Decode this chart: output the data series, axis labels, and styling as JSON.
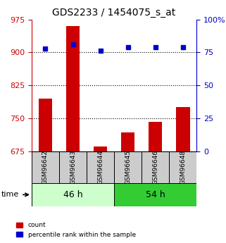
{
  "title": "GDS2233 / 1454075_s_at",
  "samples": [
    "GSM96642",
    "GSM96643",
    "GSM96644",
    "GSM96645",
    "GSM96646",
    "GSM96648"
  ],
  "bar_values": [
    795,
    960,
    685,
    718,
    742,
    775
  ],
  "percentile_values": [
    78,
    81,
    76,
    79,
    79,
    79
  ],
  "ylim_left": [
    675,
    975
  ],
  "ylim_right": [
    0,
    100
  ],
  "yticks_left": [
    675,
    750,
    825,
    900,
    975
  ],
  "yticks_right": [
    0,
    25,
    50,
    75,
    100
  ],
  "bar_color": "#cc0000",
  "percentile_color": "#0000cc",
  "group1_label": "46 h",
  "group2_label": "54 h",
  "group1_indices": [
    0,
    1,
    2
  ],
  "group2_indices": [
    3,
    4,
    5
  ],
  "group1_color": "#ccffcc",
  "group2_color": "#33cc33",
  "xlabel_time": "time",
  "legend_count": "count",
  "legend_percentile": "percentile rank within the sample",
  "bar_width": 0.5,
  "dotted_line_color": "#000000"
}
